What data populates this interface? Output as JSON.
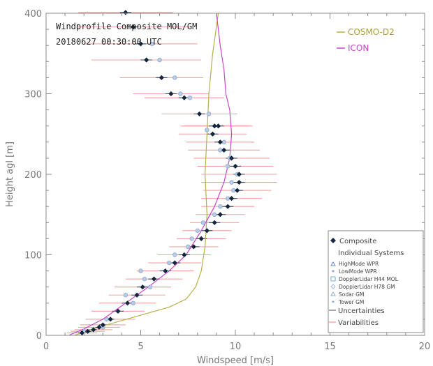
{
  "chart_data": {
    "type": "scatter",
    "title": "Windprofile Composite MOL/GM",
    "subtitle": "20180627 00:30:00 UTC",
    "xlabel": "Windspeed [m/s]",
    "ylabel": "Height agl [m]",
    "xlim": [
      0,
      20
    ],
    "ylim": [
      0,
      400
    ],
    "xticks": [
      "0",
      "5",
      "10",
      "15",
      "20"
    ],
    "yticks": [
      "0",
      "100",
      "200",
      "300",
      "400"
    ],
    "grid": false,
    "legend_position": "bottom-right",
    "model_legend": {
      "position": "top-right",
      "entries": [
        {
          "name": "COSMO-D2",
          "color": "#b5b04a"
        },
        {
          "name": "ICON",
          "color": "#cc44cc"
        }
      ]
    },
    "legend": {
      "composite": "Composite",
      "individual_header": "Individual Systems",
      "systems": [
        {
          "name": "HighMode WPR",
          "marker": "triangle",
          "color": "#6688cc"
        },
        {
          "name": "LowMode WPR",
          "marker": "star",
          "color": "#4466aa"
        },
        {
          "name": "DopplerLidar H44 MOL",
          "marker": "square",
          "color": "#77aadd"
        },
        {
          "name": "DopplerLidar H78 GM",
          "marker": "diamond",
          "color": "#99bbdd"
        },
        {
          "name": "Sodar GM",
          "marker": "triangle",
          "color": "#88aacc"
        },
        {
          "name": "Tower GM",
          "marker": "star",
          "color": "#5577bb"
        }
      ],
      "uncertainties": "Uncertainties",
      "variabilities": "Variabilities"
    },
    "composite": [
      {
        "h": 3,
        "ws": 1.9,
        "var": 0.8,
        "unc": 0.2
      },
      {
        "h": 5,
        "ws": 2.2,
        "var": 0.9,
        "unc": 0.2
      },
      {
        "h": 7,
        "ws": 2.5,
        "var": 1.0,
        "unc": 0.2
      },
      {
        "h": 10,
        "ws": 2.8,
        "var": 1.1,
        "unc": 0.2
      },
      {
        "h": 13,
        "ws": 3.0,
        "var": 1.2,
        "unc": 0.2
      },
      {
        "h": 20,
        "ws": 3.4,
        "var": 1.3,
        "unc": 0.2
      },
      {
        "h": 30,
        "ws": 3.8,
        "var": 1.4,
        "unc": 0.3
      },
      {
        "h": 40,
        "ws": 4.3,
        "var": 1.5,
        "unc": 0.3
      },
      {
        "h": 50,
        "ws": 4.8,
        "var": 1.5,
        "unc": 0.3
      },
      {
        "h": 60,
        "ws": 5.1,
        "var": 1.5,
        "unc": 0.3
      },
      {
        "h": 70,
        "ws": 5.7,
        "var": 1.5,
        "unc": 0.3
      },
      {
        "h": 80,
        "ws": 6.3,
        "var": 1.5,
        "unc": 0.3
      },
      {
        "h": 90,
        "ws": 6.8,
        "var": 1.4,
        "unc": 0.3
      },
      {
        "h": 100,
        "ws": 7.3,
        "var": 1.4,
        "unc": 0.3
      },
      {
        "h": 110,
        "ws": 7.8,
        "var": 1.3,
        "unc": 0.3
      },
      {
        "h": 120,
        "ws": 8.2,
        "var": 1.3,
        "unc": 0.3
      },
      {
        "h": 130,
        "ws": 8.5,
        "var": 1.3,
        "unc": 0.3
      },
      {
        "h": 140,
        "ws": 8.9,
        "var": 1.3,
        "unc": 0.3
      },
      {
        "h": 150,
        "ws": 9.2,
        "var": 1.3,
        "unc": 0.3
      },
      {
        "h": 160,
        "ws": 9.6,
        "var": 1.4,
        "unc": 0.3
      },
      {
        "h": 170,
        "ws": 9.8,
        "var": 1.6,
        "unc": 0.3
      },
      {
        "h": 180,
        "ws": 10.1,
        "var": 1.8,
        "unc": 0.3
      },
      {
        "h": 190,
        "ws": 10.2,
        "var": 2.0,
        "unc": 0.3
      },
      {
        "h": 200,
        "ws": 10.2,
        "var": 2.0,
        "unc": 0.3
      },
      {
        "h": 210,
        "ws": 10.0,
        "var": 2.0,
        "unc": 0.3
      },
      {
        "h": 220,
        "ws": 9.8,
        "var": 2.0,
        "unc": 0.3
      },
      {
        "h": 230,
        "ws": 9.4,
        "var": 1.9,
        "unc": 0.3
      },
      {
        "h": 240,
        "ws": 9.2,
        "var": 1.8,
        "unc": 0.3
      },
      {
        "h": 250,
        "ws": 8.8,
        "var": 1.8,
        "unc": 0.3
      },
      {
        "h": 260,
        "ws": 8.9,
        "var": 1.8,
        "unc": 0.3
      },
      {
        "h": 260,
        "ws": 9.1,
        "var": 1.8,
        "unc": 0.3
      },
      {
        "h": 275,
        "ws": 8.1,
        "var": 2.0,
        "unc": 0.3
      },
      {
        "h": 295,
        "ws": 7.3,
        "var": 2.1,
        "unc": 0.3
      },
      {
        "h": 300,
        "ws": 6.6,
        "var": 2.0,
        "unc": 0.3
      },
      {
        "h": 320,
        "ws": 6.1,
        "var": 2.2,
        "unc": 0.3
      },
      {
        "h": 342,
        "ws": 5.3,
        "var": 2.9,
        "unc": 0.3
      },
      {
        "h": 362,
        "ws": 5.0,
        "var": 3.0,
        "unc": 0.3
      },
      {
        "h": 383,
        "ws": 4.6,
        "var": 3.0,
        "unc": 0.3
      },
      {
        "h": 401,
        "ws": 4.2,
        "var": 2.5,
        "unc": 0.3
      }
    ],
    "individual_points": [
      {
        "h": 5,
        "ws": 2.0
      },
      {
        "h": 10,
        "ws": 3.0
      },
      {
        "h": 20,
        "ws": 3.2
      },
      {
        "h": 40,
        "ws": 4.6
      },
      {
        "h": 50,
        "ws": 4.2
      },
      {
        "h": 60,
        "ws": 5.5
      },
      {
        "h": 70,
        "ws": 5.2
      },
      {
        "h": 80,
        "ws": 5.0
      },
      {
        "h": 90,
        "ws": 6.5
      },
      {
        "h": 100,
        "ws": 6.8
      },
      {
        "h": 110,
        "ws": 7.5
      },
      {
        "h": 120,
        "ws": 7.7
      },
      {
        "h": 130,
        "ws": 8.0
      },
      {
        "h": 140,
        "ws": 8.3
      },
      {
        "h": 150,
        "ws": 8.9
      },
      {
        "h": 160,
        "ws": 9.2
      },
      {
        "h": 170,
        "ws": 9.6
      },
      {
        "h": 180,
        "ws": 9.9
      },
      {
        "h": 190,
        "ws": 9.8
      },
      {
        "h": 200,
        "ws": 10.1
      },
      {
        "h": 210,
        "ws": 9.6
      },
      {
        "h": 220,
        "ws": 9.7
      },
      {
        "h": 230,
        "ws": 9.2
      },
      {
        "h": 240,
        "ws": 9.4
      },
      {
        "h": 255,
        "ws": 8.5
      },
      {
        "h": 275,
        "ws": 8.6
      },
      {
        "h": 295,
        "ws": 7.6
      },
      {
        "h": 300,
        "ws": 7.1
      },
      {
        "h": 320,
        "ws": 6.8
      },
      {
        "h": 342,
        "ws": 6.0
      },
      {
        "h": 362,
        "ws": 5.6
      }
    ],
    "model_profiles": [
      {
        "name": "COSMO-D2",
        "color": "#b5b04a",
        "points": [
          [
            1.5,
            0
          ],
          [
            2.5,
            8
          ],
          [
            3.5,
            15
          ],
          [
            5.0,
            25
          ],
          [
            6.5,
            35
          ],
          [
            7.4,
            45
          ],
          [
            7.9,
            60
          ],
          [
            8.2,
            80
          ],
          [
            8.4,
            110
          ],
          [
            8.5,
            150
          ],
          [
            8.4,
            200
          ],
          [
            8.5,
            250
          ],
          [
            8.6,
            300
          ],
          [
            8.8,
            350
          ],
          [
            9.1,
            400
          ]
        ]
      },
      {
        "name": "ICON",
        "color": "#cc44cc",
        "points": [
          [
            1.2,
            0
          ],
          [
            2.0,
            8
          ],
          [
            3.0,
            20
          ],
          [
            4.2,
            40
          ],
          [
            5.4,
            60
          ],
          [
            6.5,
            80
          ],
          [
            7.4,
            100
          ],
          [
            8.2,
            130
          ],
          [
            8.9,
            160
          ],
          [
            9.4,
            190
          ],
          [
            9.7,
            220
          ],
          [
            9.8,
            250
          ],
          [
            9.7,
            280
          ],
          [
            9.5,
            300
          ],
          [
            9.4,
            330
          ],
          [
            9.2,
            360
          ],
          [
            9.0,
            400
          ]
        ]
      }
    ]
  }
}
